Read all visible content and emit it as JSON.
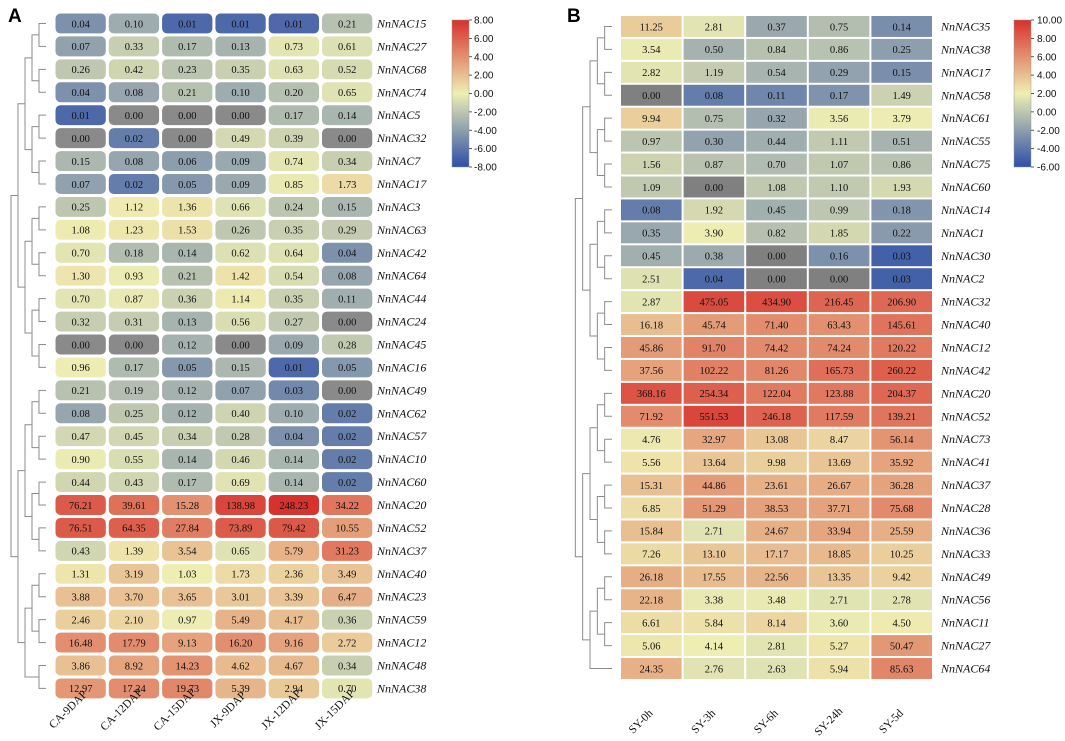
{
  "chart_data": [
    {
      "panel": "A",
      "type": "heatmap",
      "columns": [
        "CA-9DAP",
        "CA-12DAP",
        "CA-15DAP",
        "JX-9DAP",
        "JX-12DAP",
        "JX-15DAP"
      ],
      "rows": [
        "NnNAC15",
        "NnNAC27",
        "NnNAC68",
        "NnNAC74",
        "NnNAC5",
        "NnNAC32",
        "NnNAC7",
        "NnNAC17",
        "NnNAC3",
        "NnNAC63",
        "NnNAC42",
        "NnNAC64",
        "NnNAC44",
        "NnNAC24",
        "NnNAC45",
        "NnNAC16",
        "NnNAC49",
        "NnNAC62",
        "NnNAC57",
        "NnNAC10",
        "NnNAC60",
        "NnNAC20",
        "NnNAC52",
        "NnNAC37",
        "NnNAC40",
        "NnNAC23",
        "NnNAC59",
        "NnNAC12",
        "NnNAC48",
        "NnNAC38"
      ],
      "labels": [
        [
          "0.04",
          "0.10",
          "0.01",
          "0.01",
          "0.01",
          "0.21"
        ],
        [
          "0.07",
          "0.33",
          "0.17",
          "0.13",
          "0.73",
          "0.61"
        ],
        [
          "0.26",
          "0.42",
          "0.23",
          "0.35",
          "0.63",
          "0.52"
        ],
        [
          "0.04",
          "0.08",
          "0.21",
          "0.10",
          "0.20",
          "0.65"
        ],
        [
          "0.01",
          "0.00",
          "0.00",
          "0.00",
          "0.17",
          "0.14"
        ],
        [
          "0.00",
          "0.02",
          "0.00",
          "0.49",
          "0.39",
          "0.00"
        ],
        [
          "0.15",
          "0.08",
          "0.06",
          "0.09",
          "0.74",
          "0.34"
        ],
        [
          "0.07",
          "0.02",
          "0.05",
          "0.09",
          "0.85",
          "1.73"
        ],
        [
          "0.25",
          "1.12",
          "1.36",
          "0.66",
          "0.24",
          "0.15"
        ],
        [
          "1.08",
          "1.23",
          "1.53",
          "0.26",
          "0.35",
          "0.29"
        ],
        [
          "0.70",
          "0.18",
          "0.14",
          "0.62",
          "0.64",
          "0.04"
        ],
        [
          "1.30",
          "0.93",
          "0.21",
          "1.42",
          "0.54",
          "0.08"
        ],
        [
          "0.70",
          "0.87",
          "0.36",
          "1.14",
          "0.35",
          "0.11"
        ],
        [
          "0.32",
          "0.31",
          "0.13",
          "0.56",
          "0.27",
          "0.00"
        ],
        [
          "0.00",
          "0.00",
          "0.12",
          "0.00",
          "0.09",
          "0.28"
        ],
        [
          "0.96",
          "0.17",
          "0.05",
          "0.15",
          "0.01",
          "0.05"
        ],
        [
          "0.21",
          "0.19",
          "0.12",
          "0.07",
          "0.03",
          "0.00"
        ],
        [
          "0.08",
          "0.25",
          "0.12",
          "0.40",
          "0.10",
          "0.02"
        ],
        [
          "0.47",
          "0.45",
          "0.34",
          "0.28",
          "0.04",
          "0.02"
        ],
        [
          "0.90",
          "0.55",
          "0.14",
          "0.46",
          "0.14",
          "0.02"
        ],
        [
          "0.44",
          "0.43",
          "0.17",
          "0.69",
          "0.14",
          "0.02"
        ],
        [
          "76.21",
          "39.61",
          "15.28",
          "138.98",
          "248.23",
          "34.22"
        ],
        [
          "76.51",
          "64.35",
          "27.84",
          "73.89",
          "79.42",
          "10.55"
        ],
        [
          "0.43",
          "1.39",
          "3.54",
          "0.65",
          "5.79",
          "31.23"
        ],
        [
          "1.31",
          "3.19",
          "1.03",
          "1.73",
          "2.36",
          "3.49"
        ],
        [
          "3.88",
          "3.70",
          "3.65",
          "3.01",
          "3.39",
          "6.47"
        ],
        [
          "2.46",
          "2.10",
          "0.97",
          "5.49",
          "4.17",
          "0.36"
        ],
        [
          "16.48",
          "17.79",
          "9.13",
          "16.20",
          "9.16",
          "2.72"
        ],
        [
          "3.86",
          "8.92",
          "14.23",
          "4.62",
          "4.67",
          "0.34"
        ],
        [
          "12.97",
          "17.24",
          "19.73",
          "5.39",
          "2.94",
          "0.70"
        ]
      ],
      "colorbar": {
        "ticks": [
          "8.00",
          "6.00",
          "4.00",
          "2.00",
          "0.00",
          "-2.00",
          "-4.00",
          "-6.00",
          "-8.00"
        ],
        "range": [
          -8,
          8
        ]
      },
      "zero_color": "#8a8a8a"
    },
    {
      "panel": "B",
      "type": "heatmap",
      "columns": [
        "SY-0h",
        "SY-3h",
        "SY-6h",
        "SY-24h",
        "SY-5d"
      ],
      "rows": [
        "NnNAC35",
        "NnNAC38",
        "NnNAC17",
        "NnNAC58",
        "NnNAC61",
        "NnNAC55",
        "NnNAC75",
        "NnNAC60",
        "NnNAC14",
        "NnNAC1",
        "NnNAC30",
        "NnNAC2",
        "NnNAC32",
        "NnNAC40",
        "NnNAC12",
        "NnNAC42",
        "NnNAC20",
        "NnNAC52",
        "NnNAC73",
        "NnNAC41",
        "NnNAC37",
        "NnNAC28",
        "NnNAC36",
        "NnNAC33",
        "NnNAC49",
        "NnNAC56",
        "NnNAC11",
        "NnNAC27",
        "NnNAC64"
      ],
      "labels": [
        [
          "11.25",
          "2.81",
          "0.37",
          "0.75",
          "0.14"
        ],
        [
          "3.54",
          "0.50",
          "0.84",
          "0.86",
          "0.25"
        ],
        [
          "2.82",
          "1.19",
          "0.54",
          "0.29",
          "0.15"
        ],
        [
          "0.00",
          "0.08",
          "0.11",
          "0.17",
          "1.49"
        ],
        [
          "9.94",
          "0.75",
          "0.32",
          "3.56",
          "3.79"
        ],
        [
          "0.97",
          "0.30",
          "0.44",
          "1.11",
          "0.51"
        ],
        [
          "1.56",
          "0.87",
          "0.70",
          "1.07",
          "0.86"
        ],
        [
          "1.09",
          "0.00",
          "1.08",
          "1.10",
          "1.93"
        ],
        [
          "0.08",
          "1.92",
          "0.45",
          "0.99",
          "0.18"
        ],
        [
          "0.35",
          "3.90",
          "0.82",
          "1.85",
          "0.22"
        ],
        [
          "0.45",
          "0.38",
          "0.00",
          "0.16",
          "0.03"
        ],
        [
          "2.51",
          "0.04",
          "0.00",
          "0.00",
          "0.03"
        ],
        [
          "2.87",
          "475.05",
          "434.90",
          "216.45",
          "206.90"
        ],
        [
          "16.18",
          "45.74",
          "71.40",
          "63.43",
          "145.61"
        ],
        [
          "45.86",
          "91.70",
          "74.42",
          "74.24",
          "120.22"
        ],
        [
          "37.56",
          "102.22",
          "81.26",
          "165.73",
          "260.22"
        ],
        [
          "368.16",
          "254.34",
          "122.04",
          "123.88",
          "204.37"
        ],
        [
          "71.92",
          "551.53",
          "246.18",
          "117.59",
          "139.21"
        ],
        [
          "4.76",
          "32.97",
          "13.08",
          "8.47",
          "56.14"
        ],
        [
          "5.56",
          "13.64",
          "9.98",
          "13.69",
          "35.92"
        ],
        [
          "15.31",
          "44.86",
          "23.61",
          "26.67",
          "36.28"
        ],
        [
          "6.85",
          "51.29",
          "38.53",
          "37.71",
          "75.68"
        ],
        [
          "15.84",
          "2.71",
          "24.67",
          "33.94",
          "25.59"
        ],
        [
          "7.26",
          "13.10",
          "17.17",
          "18.85",
          "10.25"
        ],
        [
          "26.18",
          "17.55",
          "22.56",
          "13.35",
          "9.42"
        ],
        [
          "22.18",
          "3.38",
          "3.48",
          "2.71",
          "2.78"
        ],
        [
          "6.61",
          "5.84",
          "8.14",
          "3.60",
          "4.50"
        ],
        [
          "5.06",
          "4.14",
          "2.81",
          "5.27",
          "50.47"
        ],
        [
          "24.35",
          "2.76",
          "2.63",
          "5.94",
          "85.63"
        ]
      ],
      "colorbar": {
        "ticks": [
          "10.00",
          "8.00",
          "6.00",
          "4.00",
          "2.00",
          "0.00",
          "-2.00",
          "-4.00",
          "-6.00"
        ],
        "range": [
          -6,
          10
        ]
      },
      "zero_color": "#808080"
    }
  ],
  "colors": {
    "low": "#2c4ea8",
    "mid": "#eeeeb3",
    "high": "#d7312c",
    "dendrogram": "#8c8c8c"
  }
}
